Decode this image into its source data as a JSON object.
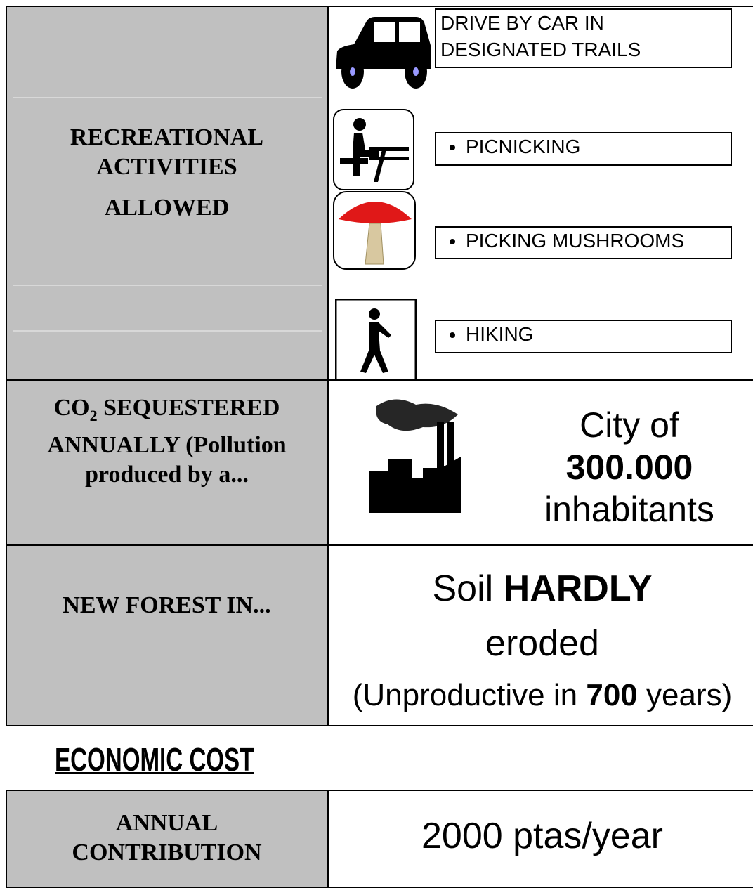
{
  "recreation": {
    "label": "RECREATIONAL ACTIVITIES",
    "label_last": "ALLOWED",
    "activities": [
      "DRIVE BY CAR IN DESIGNATED TRAILS",
      "PICNICKING",
      "PICKING MUSHROOMS",
      "HIKING"
    ]
  },
  "co2": {
    "label_prefix": "CO",
    "label_subscript": "2",
    "label_rest": "SEQUESTERED ANNUALLY (Pollution produced by a...",
    "value_lead": "City of",
    "value_number": "300.000",
    "value_tail": "inhabitants"
  },
  "forest": {
    "label": "NEW FOREST IN...",
    "soil": "Soil",
    "soil_bold": "HARDLY",
    "eroded": "eroded",
    "unproductive_lead": "(Unproductive in",
    "unproductive_number": "700",
    "unproductive_tail": "years)"
  },
  "economic": {
    "heading": "ECONOMIC COST",
    "contribution_label": "ANNUAL CONTRIBUTION",
    "contribution_value": "2000 ptas/year"
  }
}
